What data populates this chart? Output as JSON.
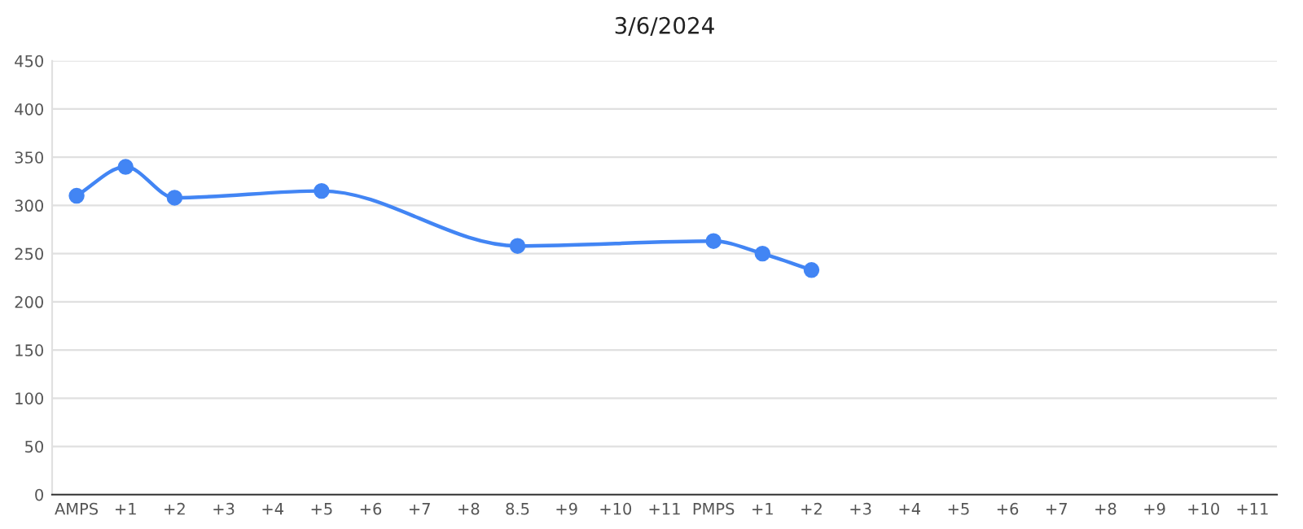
{
  "chart_data": {
    "type": "line",
    "title": "3/6/2024",
    "categories": [
      "AMPS",
      "+1",
      "+2",
      "+3",
      "+4",
      "+5",
      "+6",
      "+7",
      "+8",
      "8.5",
      "+9",
      "+10",
      "+11",
      "PMPS",
      "+1",
      "+2",
      "+3",
      "+4",
      "+5",
      "+6",
      "+7",
      "+8",
      "+9",
      "+10",
      "+11"
    ],
    "series": [
      {
        "color": "#4285f4",
        "values": [
          310,
          340,
          308,
          null,
          null,
          315,
          null,
          null,
          null,
          258,
          null,
          null,
          null,
          263,
          250,
          233,
          null,
          null,
          null,
          null,
          null,
          null,
          null,
          null,
          null
        ]
      }
    ],
    "ylim": [
      0,
      450
    ],
    "yticks": [
      0,
      50,
      100,
      150,
      200,
      250,
      300,
      350,
      400,
      450
    ],
    "grid": "y",
    "marker": "circle",
    "line_style": "solid",
    "legend": false
  }
}
